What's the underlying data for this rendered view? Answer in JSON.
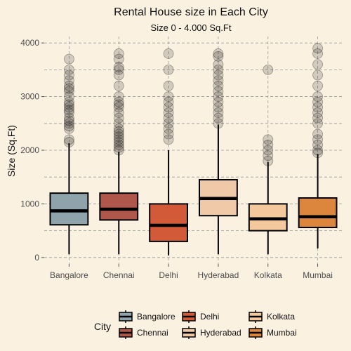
{
  "chart_data": {
    "type": "boxplot",
    "title": "Rental House size in Each City",
    "subtitle": "Size 0 - 4.000 Sq.Ft",
    "xlabel": "",
    "ylabel": "Size (Sq.Ft)",
    "ylim": [
      -120,
      4120
    ],
    "y_ticks": [
      0,
      1000,
      2000,
      3000,
      4000
    ],
    "grid": true,
    "legend": {
      "title": "City",
      "position": "bottom"
    },
    "categories": [
      "Bangalore",
      "Chennai",
      "Delhi",
      "Hyderabad",
      "Kolkata",
      "Mumbai"
    ],
    "colors": [
      "#8fa3ab",
      "#b0574b",
      "#d35a38",
      "#f0c9a8",
      "#f2c89c",
      "#dc853c"
    ],
    "boxes": [
      {
        "name": "Bangalore",
        "min": 60,
        "q1": 610,
        "median": 870,
        "q3": 1200,
        "max": 2130,
        "outliers": [
          2150,
          2200,
          2400,
          2450,
          2500,
          2550,
          2600,
          2700,
          2750,
          2800,
          2850,
          2900,
          3000,
          3100,
          3150,
          3200,
          3300,
          3400,
          3500,
          3700
        ]
      },
      {
        "name": "Chennai",
        "min": 60,
        "q1": 700,
        "median": 900,
        "q3": 1200,
        "max": 1970,
        "outliers": [
          2000,
          2050,
          2100,
          2150,
          2200,
          2250,
          2300,
          2350,
          2400,
          2500,
          2600,
          2700,
          2800,
          2850,
          2900,
          3000,
          3200,
          3400,
          3500,
          3550,
          3700,
          3800
        ]
      },
      {
        "name": "Delhi",
        "min": 40,
        "q1": 300,
        "median": 600,
        "q3": 1000,
        "max": 2000,
        "outliers": [
          2200,
          2300,
          2400,
          2500,
          2600,
          2700,
          2800,
          2900,
          3000,
          3200,
          3500,
          3800
        ]
      },
      {
        "name": "Hyderabad",
        "min": 60,
        "q1": 780,
        "median": 1100,
        "q3": 1450,
        "max": 2480,
        "outliers": [
          2500,
          2600,
          2700,
          2800,
          2900,
          3000,
          3100,
          3200,
          3300,
          3400,
          3500,
          3600,
          3750,
          3800
        ]
      },
      {
        "name": "Kolkata",
        "min": 60,
        "q1": 500,
        "median": 720,
        "q3": 1000,
        "max": 1780,
        "outliers": [
          1800,
          1900,
          2000,
          2100,
          2200,
          3500
        ]
      },
      {
        "name": "Mumbai",
        "min": 170,
        "q1": 560,
        "median": 760,
        "q3": 1110,
        "max": 1930,
        "outliers": [
          1950,
          2000,
          2100,
          2200,
          2300,
          2500,
          2600,
          2700,
          2800,
          2900,
          3000,
          3200,
          3400,
          3600,
          3800,
          3900
        ]
      }
    ]
  }
}
